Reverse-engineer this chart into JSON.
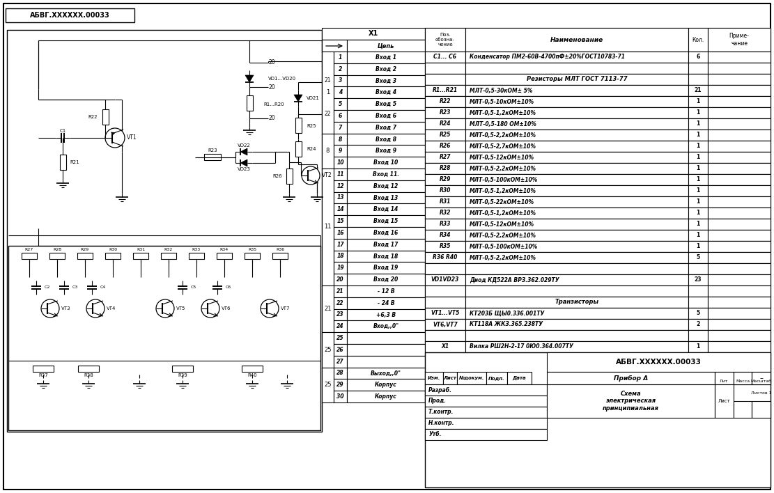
{
  "bg_color": "#ffffff",
  "line_color": "#000000",
  "title_stamp": "АБВГ.XXXXXX.00033",
  "connector_label": "X1",
  "connector_pins": [
    [
      1,
      "Вход 1"
    ],
    [
      2,
      "Вход 2"
    ],
    [
      3,
      "Вход 3"
    ],
    [
      4,
      "Вход 4"
    ],
    [
      5,
      "Вход 5"
    ],
    [
      6,
      "Вход 6"
    ],
    [
      7,
      "Вход 7"
    ],
    [
      8,
      "Вход 8"
    ],
    [
      9,
      "Вход 9"
    ],
    [
      10,
      "Вход 10"
    ],
    [
      11,
      "Вход 11."
    ],
    [
      12,
      "Вход 12"
    ],
    [
      13,
      "Вход 13"
    ],
    [
      14,
      "Вход 14"
    ],
    [
      15,
      "Вход 15"
    ],
    [
      16,
      "Вход 16"
    ],
    [
      17,
      "Вход 17"
    ],
    [
      18,
      "Вход 18"
    ],
    [
      19,
      "Вход 19"
    ],
    [
      20,
      "Вход 20"
    ],
    [
      21,
      "- 12 В"
    ],
    [
      22,
      "- 24 В"
    ],
    [
      23,
      "+6,3 В"
    ],
    [
      24,
      "Вход,,0\""
    ],
    [
      25,
      ""
    ],
    [
      26,
      ""
    ],
    [
      27,
      ""
    ],
    [
      28,
      "Выход,,0\""
    ],
    [
      29,
      "Корпус"
    ],
    [
      30,
      "Корпус"
    ]
  ],
  "bom_rows": [
    [
      "С1... С6",
      "Конденсатор ПМ2-60В-4700пФ±20%ГОСТ10783-71",
      "6",
      ""
    ],
    [
      "",
      "",
      "",
      ""
    ],
    [
      "",
      "Резисторы МЛТ ГОСТ 7113-77",
      "",
      ""
    ],
    [
      "R1...R21",
      "МЛТ-0,5-30кОМ± 5%",
      "21",
      ""
    ],
    [
      "R22",
      "МЛТ-0,5-10кОМ±10%",
      "1",
      ""
    ],
    [
      "R23",
      "МЛТ-0,5-1,2кОМ±10%",
      "1",
      ""
    ],
    [
      "R24",
      "МЛТ-0,5-180 ОМ±10%",
      "1",
      ""
    ],
    [
      "R25",
      "МЛТ-0,5-2,2кОМ±10%",
      "1",
      ""
    ],
    [
      "R26",
      "МЛТ-0,5-2,7кОМ±10%",
      "1",
      ""
    ],
    [
      "R27",
      "МЛТ-0,5-12кОМ±10%",
      "1",
      ""
    ],
    [
      "R28",
      "МЛТ-0,5-2,2кОМ±10%",
      "1",
      ""
    ],
    [
      "R29",
      "МЛТ-0,5-100кОМ±10%",
      "1",
      ""
    ],
    [
      "R30",
      "МЛТ-0,5-1,2кОМ±10%",
      "1",
      ""
    ],
    [
      "R31",
      "МЛТ-0,5-22кОМ±10%",
      "1",
      ""
    ],
    [
      "R32",
      "МЛТ-0,5-1,2кОМ±10%",
      "1",
      ""
    ],
    [
      "R33",
      "МЛТ-0,5-12кОМ±10%",
      "1",
      ""
    ],
    [
      "R34",
      "МЛТ-0,5-2,2кОМ±10%",
      "1",
      ""
    ],
    [
      "R35",
      "МЛТ-0,5-100кОМ±10%",
      "1",
      ""
    ],
    [
      "R36 R40",
      "МЛТ-0,5-2,2кОМ±10%",
      "5",
      ""
    ],
    [
      "",
      "",
      "",
      ""
    ],
    [
      "VD1VD23",
      "Диод КД522А ВРЗ.362.029ТУ",
      "23",
      ""
    ],
    [
      "",
      "",
      "",
      ""
    ],
    [
      "",
      "Транзисторы",
      "",
      ""
    ],
    [
      "VT1...VT5",
      "КТ203Б ЩЫ0.336.001ТУ",
      "5",
      ""
    ],
    [
      "VT6,VT7",
      "КТ118А ЖКЗ.365.238ТУ",
      "2",
      ""
    ],
    [
      "",
      "",
      "",
      ""
    ],
    [
      "X1",
      "Вилка РШ2Н-2-17 0Ю0.364.007ТУ",
      "1",
      ""
    ]
  ],
  "stamp_title": "АБВГ.XXXXXX.00033",
  "stamp_device": "Прибор А\nСхема\nэлектрическая\nпринципиальная",
  "stamp_fields_left": [
    "Изм.",
    "Лист",
    "№докум.",
    "Подп.",
    "Дата"
  ],
  "stamp_rows_left": [
    "Разраб.",
    "Прод.",
    "Т.контр.",
    "Н.контр.",
    "Утб."
  ]
}
